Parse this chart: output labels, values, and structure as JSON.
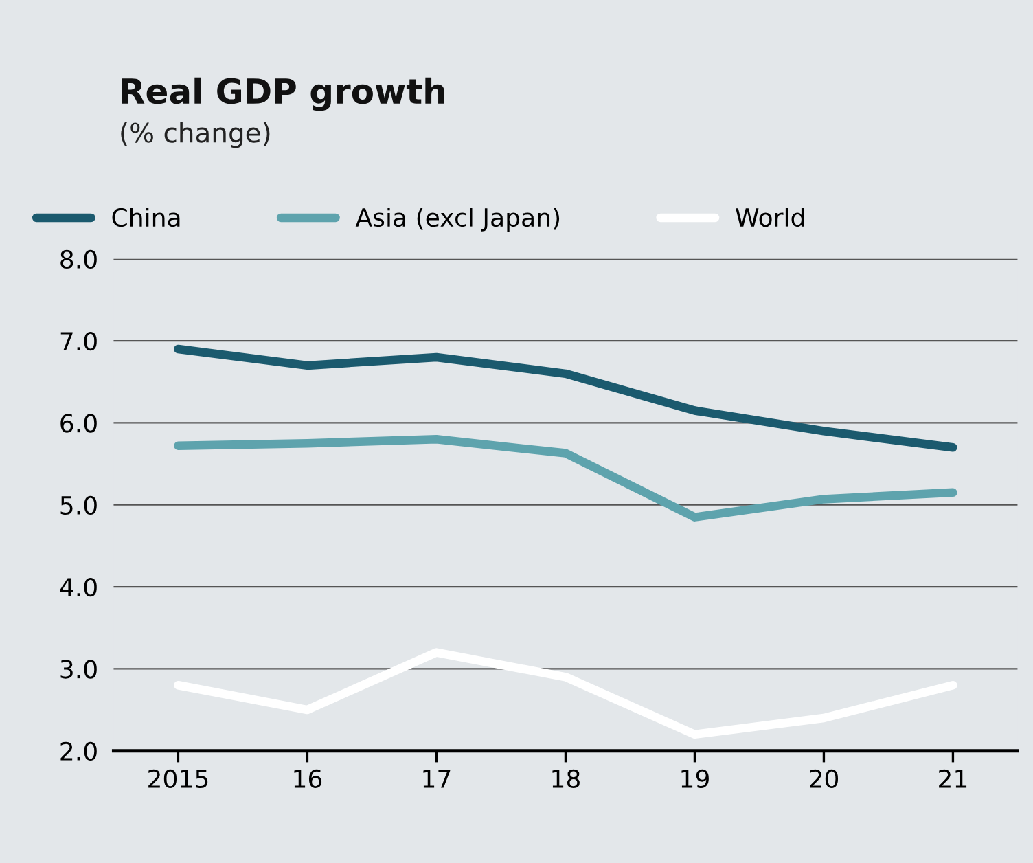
{
  "chart_data": {
    "type": "line",
    "title": "Real GDP growth",
    "subtitle": "(% change)",
    "categories": [
      "2015",
      "16",
      "17",
      "18",
      "19",
      "20",
      "21"
    ],
    "series": [
      {
        "name": "China",
        "color": "#1b5a6e",
        "values": [
          6.9,
          6.7,
          6.8,
          6.6,
          6.15,
          5.9,
          5.7
        ]
      },
      {
        "name": "Asia (excl Japan)",
        "color": "#5ea3ad",
        "values": [
          5.72,
          5.75,
          5.8,
          5.63,
          4.85,
          5.07,
          5.15
        ]
      },
      {
        "name": "World",
        "color": "#ffffff",
        "values": [
          2.8,
          2.5,
          3.2,
          2.9,
          2.2,
          2.4,
          2.8
        ]
      }
    ],
    "ylim": [
      2,
      8
    ],
    "yticks": [
      {
        "value": 2,
        "label": "2.0"
      },
      {
        "value": 3,
        "label": "3.0"
      },
      {
        "value": 4,
        "label": "4.0"
      },
      {
        "value": 5,
        "label": "5.0"
      },
      {
        "value": 6,
        "label": "6.0"
      },
      {
        "value": 7,
        "label": "7.0"
      },
      {
        "value": 8,
        "label": "8.0"
      }
    ],
    "grid": "y",
    "legend": "top left",
    "marker": "none",
    "line_style": "solid"
  }
}
